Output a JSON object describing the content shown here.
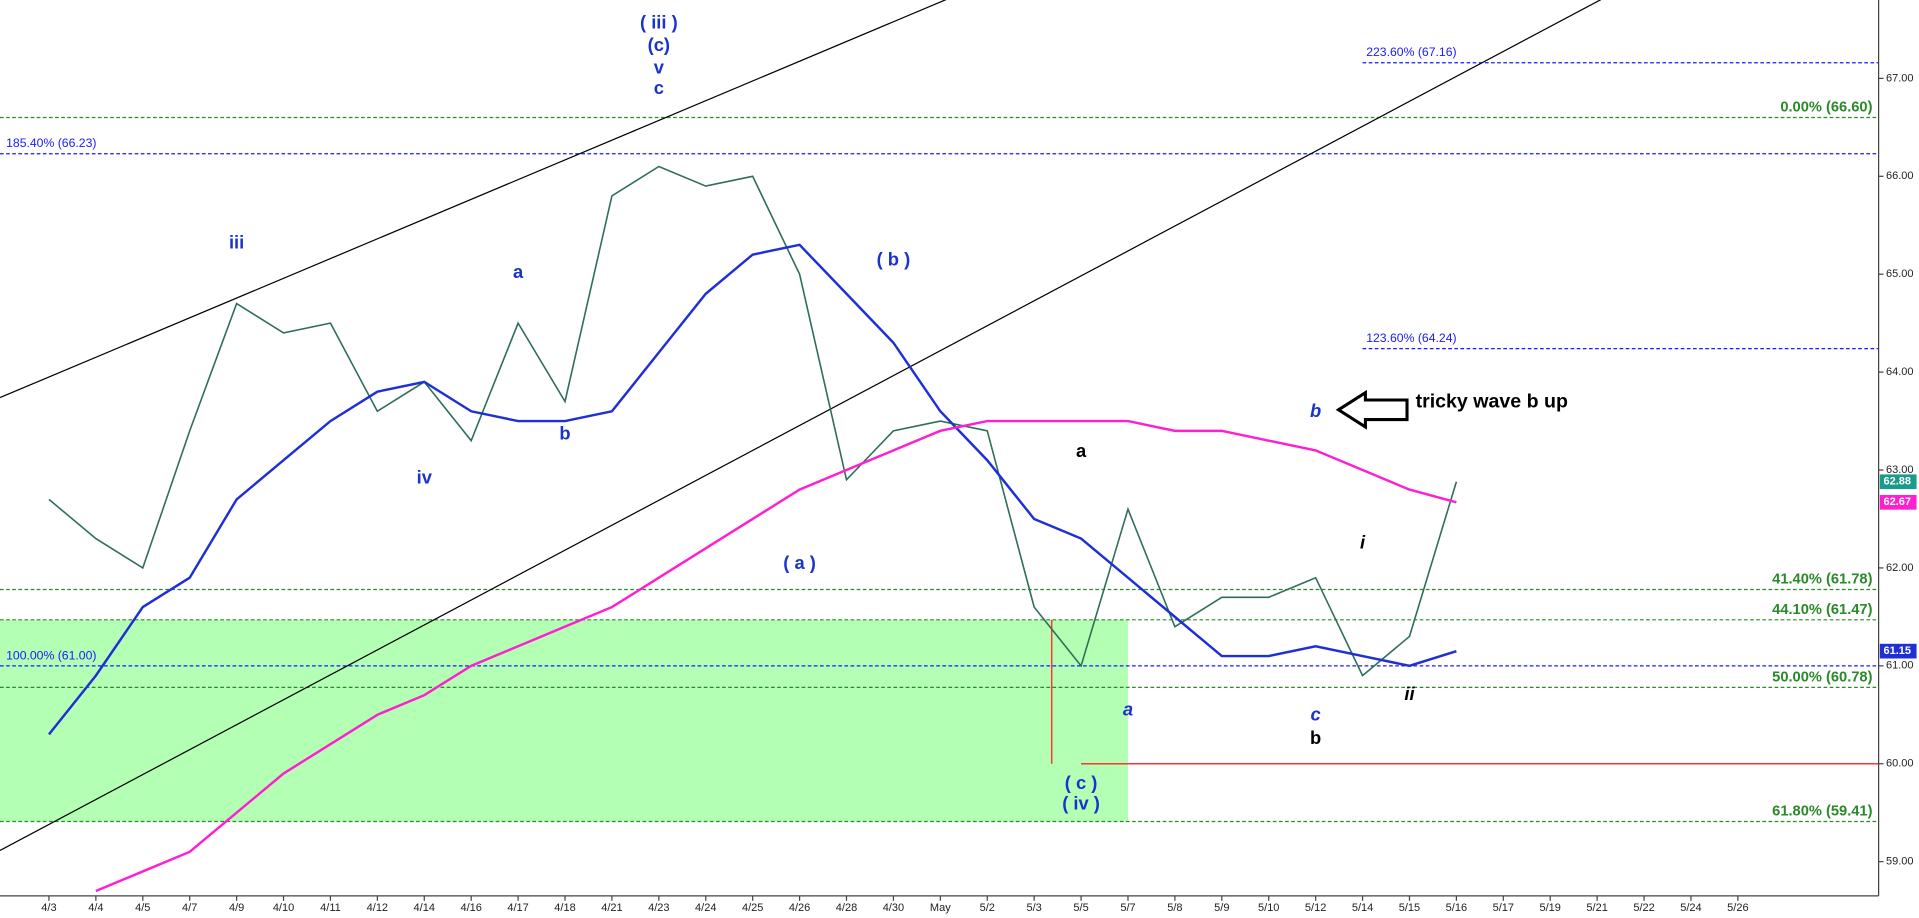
{
  "chart_data": {
    "type": "line",
    "categories": [
      "4/3",
      "4/4",
      "4/5",
      "4/7",
      "4/9",
      "4/10",
      "4/11",
      "4/12",
      "4/14",
      "4/16",
      "4/17",
      "4/18",
      "4/21",
      "4/23",
      "4/24",
      "4/25",
      "4/26",
      "4/28",
      "4/30",
      "May",
      "5/2",
      "5/3",
      "5/5",
      "5/7",
      "5/8",
      "5/9",
      "5/10",
      "5/12",
      "5/14",
      "5/15",
      "5/16",
      "5/17",
      "5/19",
      "5/21",
      "5/22",
      "5/24",
      "5/26"
    ],
    "series": [
      {
        "color": "#2f6f55",
        "values": [
          62.7,
          62.3,
          62.0,
          63.4,
          64.7,
          64.4,
          64.5,
          63.6,
          63.9,
          63.3,
          64.5,
          63.7,
          65.8,
          66.1,
          65.9,
          66.0,
          65.0,
          62.9,
          63.4,
          63.5,
          63.4,
          61.6,
          61.0,
          62.6,
          61.4,
          61.7,
          61.7,
          61.9,
          60.9,
          61.3,
          62.88,
          null,
          null,
          null,
          null,
          null,
          null
        ]
      },
      {
        "color": "#1f2fd6",
        "values": [
          60.3,
          60.9,
          61.6,
          61.9,
          62.7,
          63.1,
          63.5,
          63.8,
          63.9,
          63.6,
          63.5,
          63.5,
          63.6,
          64.2,
          64.8,
          65.2,
          65.3,
          64.8,
          64.3,
          63.6,
          63.1,
          62.5,
          62.3,
          61.9,
          61.5,
          61.1,
          61.1,
          61.2,
          61.1,
          61.0,
          61.15,
          null,
          null,
          null,
          null,
          null,
          null
        ]
      },
      {
        "color": "#ff1fd0",
        "values": [
          null,
          58.7,
          58.9,
          59.1,
          59.5,
          59.9,
          60.2,
          60.5,
          60.7,
          61.0,
          61.2,
          61.4,
          61.6,
          61.9,
          62.2,
          62.5,
          62.8,
          63.0,
          63.2,
          63.4,
          63.5,
          63.5,
          63.5,
          63.5,
          63.4,
          63.4,
          63.3,
          63.2,
          63.0,
          62.8,
          62.67,
          null,
          null,
          null,
          null,
          null,
          null
        ]
      }
    ],
    "ylim": [
      58.65,
      67.8
    ],
    "yticks": [
      {
        "value": 59,
        "label": "59.00"
      },
      {
        "value": 60,
        "label": "60.00"
      },
      {
        "value": 61,
        "label": "61.00"
      },
      {
        "value": 62,
        "label": "62.00"
      },
      {
        "value": 63,
        "label": "63.00"
      },
      {
        "value": 64,
        "label": "64.00"
      },
      {
        "value": 65,
        "label": "65.00"
      },
      {
        "value": 66,
        "label": "66.00"
      },
      {
        "value": 67,
        "label": "67.00"
      }
    ],
    "price_tags": [
      {
        "value": 62.88,
        "color": "#1a9a8a"
      },
      {
        "value": 62.67,
        "color": "#ff1fd0"
      },
      {
        "value": 61.15,
        "color": "#1f2fd6"
      }
    ],
    "fib_levels": [
      {
        "label": "223.60% (67.16)",
        "value": 67.16,
        "color": "#1a1aff",
        "from": "5/14"
      },
      {
        "label": "0.00% (66.60)",
        "value": 66.6,
        "color": "#2a8a2a",
        "label_at": "right"
      },
      {
        "label": "185.40% (66.23)",
        "value": 66.23,
        "color": "#1a1aff",
        "label_at": "left"
      },
      {
        "label": "123.60% (64.24)",
        "value": 64.24,
        "color": "#1a1aff",
        "from": "5/14"
      },
      {
        "label": "41.40% (61.78)",
        "value": 61.78,
        "color": "#2a8a2a",
        "label_at": "right"
      },
      {
        "label": "44.10% (61.47)",
        "value": 61.47,
        "color": "#2a8a2a",
        "label_at": "right"
      },
      {
        "label": "100.00% (61.00)",
        "value": 61.0,
        "color": "#1a1aff",
        "label_at": "left"
      },
      {
        "label": "50.00% (60.78)",
        "value": 60.78,
        "color": "#2a8a2a",
        "label_at": "right"
      },
      {
        "label": "61.80% (59.41)",
        "value": 59.41,
        "color": "#2a8a2a",
        "label_at": "right"
      }
    ],
    "zone": {
      "color": "#b3ffb3",
      "to": "5/7",
      "range": [
        59.41,
        61.47
      ]
    },
    "support": {
      "value": 60.0,
      "color": "#ff3333",
      "from": "5/5"
    },
    "trendlines": [
      {
        "color": "#000000",
        "points": [
          [
            "4/3",
            63.95
          ],
          [
            "May",
            67.78
          ]
        ]
      },
      {
        "color": "#000000",
        "points": [
          [
            "4/3",
            59.38
          ],
          [
            "5/16",
            67.02
          ]
        ]
      }
    ],
    "waves": [
      {
        "text": "( iii )",
        "color": "#1a33cc",
        "x": "4/23",
        "y": 67.56
      },
      {
        "text": "(c)",
        "color": "#1a33cc",
        "x": "4/23",
        "y": 67.33
      },
      {
        "text": "v",
        "color": "#1a33cc",
        "x": "4/23",
        "y": 67.1
      },
      {
        "text": "c",
        "color": "#1a33cc",
        "x": "4/23",
        "y": 66.89
      },
      {
        "text": "iii",
        "color": "#1a33cc",
        "x": "4/9",
        "y": 65.31
      },
      {
        "text": "a",
        "color": "#1a33cc",
        "x": "4/17",
        "y": 65.01
      },
      {
        "text": "b",
        "color": "#1a33cc",
        "x": "4/18",
        "y": 63.36
      },
      {
        "text": "iv",
        "color": "#1a33cc",
        "x": "4/14",
        "y": 62.91
      },
      {
        "text": "( b )",
        "color": "#1a33cc",
        "x": "4/30",
        "y": 65.14
      },
      {
        "text": "( a )",
        "color": "#1a33cc",
        "x": "4/26",
        "y": 62.04
      },
      {
        "text": "a",
        "color": "#000000",
        "x": "5/5",
        "y": 63.18
      },
      {
        "text": "( c )",
        "color": "#1a33cc",
        "x": "5/5",
        "y": 59.79
      },
      {
        "text": "( iv )",
        "color": "#1a33cc",
        "x": "5/5",
        "y": 59.58
      },
      {
        "text": "a",
        "color": "#1a33cc",
        "x": "5/7",
        "y": 60.54,
        "italic": true
      },
      {
        "text": "b",
        "color": "#1a33cc",
        "x": "5/12",
        "y": 63.59,
        "italic": true
      },
      {
        "text": "i",
        "color": "#000000",
        "x": "5/14",
        "y": 62.25,
        "italic": true
      },
      {
        "text": "ii",
        "color": "#000000",
        "x": "5/15",
        "y": 60.7,
        "italic": true
      },
      {
        "text": "c",
        "color": "#1a33cc",
        "x": "5/12",
        "y": 60.49,
        "italic": true
      },
      {
        "text": "b",
        "color": "#000000",
        "x": "5/12",
        "y": 60.25
      }
    ],
    "callout": {
      "text": "tricky wave b up",
      "x": "5/15",
      "y": 63.69
    }
  }
}
